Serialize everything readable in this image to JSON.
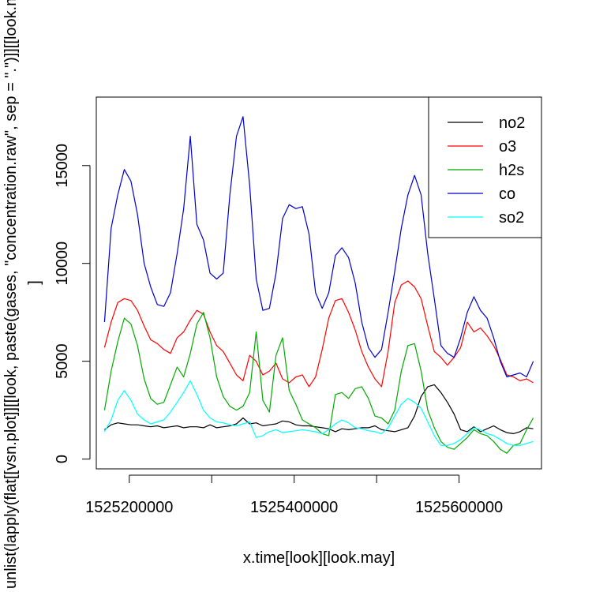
{
  "chart_data": {
    "type": "line",
    "xlabel": "x.time[look][look.may]",
    "ylabel_lines": [
      "unlist(lapply(flat[[vsn.plot]][[look, paste(gases, \"concentration.raw\", sep = \".\")]][[look.may",
      "]"
    ],
    "xlim": [
      1525160000,
      1525700000
    ],
    "ylim": [
      -500,
      18500
    ],
    "x_ticks": [
      1525200000,
      1525300000,
      1525400000,
      1525500000,
      1525600000
    ],
    "x_tick_labels": [
      "1525200000",
      "",
      "1525400000",
      "",
      "1525600000"
    ],
    "y_ticks": [
      0,
      5000,
      10000,
      15000
    ],
    "y_tick_labels": [
      "0",
      "5000",
      "10000",
      "15000"
    ],
    "grid": false,
    "legend_position": "top-right",
    "x": [
      1525170000,
      1525178000,
      1525186000,
      1525194000,
      1525202000,
      1525210000,
      1525218000,
      1525226000,
      1525234000,
      1525242000,
      1525250000,
      1525258000,
      1525266000,
      1525274000,
      1525282000,
      1525290000,
      1525298000,
      1525306000,
      1525314000,
      1525322000,
      1525330000,
      1525338000,
      1525346000,
      1525354000,
      1525362000,
      1525370000,
      1525378000,
      1525386000,
      1525394000,
      1525402000,
      1525410000,
      1525418000,
      1525426000,
      1525434000,
      1525442000,
      1525450000,
      1525458000,
      1525466000,
      1525474000,
      1525482000,
      1525490000,
      1525498000,
      1525506000,
      1525514000,
      1525522000,
      1525530000,
      1525538000,
      1525546000,
      1525554000,
      1525562000,
      1525570000,
      1525578000,
      1525586000,
      1525594000,
      1525602000,
      1525610000,
      1525618000,
      1525626000,
      1525634000,
      1525642000,
      1525650000,
      1525658000,
      1525666000,
      1525674000,
      1525682000,
      1525690000
    ],
    "series": [
      {
        "name": "no2",
        "color": "#000000",
        "values": [
          1500,
          1750,
          1850,
          1800,
          1750,
          1750,
          1700,
          1650,
          1700,
          1600,
          1650,
          1700,
          1600,
          1650,
          1650,
          1600,
          1750,
          1600,
          1650,
          1700,
          1800,
          2100,
          1800,
          1850,
          1700,
          1750,
          1800,
          1950,
          1900,
          1750,
          1700,
          1700,
          1650,
          1600,
          1550,
          1400,
          1550,
          1500,
          1550,
          1600,
          1600,
          1700,
          1500,
          1450,
          1400,
          1500,
          1600,
          2200,
          3200,
          3700,
          3800,
          3400,
          2900,
          2300,
          1500,
          1400,
          1650,
          1400,
          1550,
          1700,
          1500,
          1350,
          1300,
          1400,
          1600,
          1550
        ]
      },
      {
        "name": "o3",
        "color": "#ff0000",
        "values": [
          5700,
          7000,
          8000,
          8200,
          8100,
          7600,
          6800,
          6100,
          5900,
          5600,
          5400,
          6200,
          6500,
          7100,
          7600,
          7400,
          6500,
          5800,
          5500,
          4900,
          4300,
          4000,
          5300,
          5000,
          4300,
          4500,
          4900,
          4100,
          3900,
          4200,
          4300,
          3700,
          4200,
          5600,
          7200,
          8100,
          8200,
          7500,
          6600,
          5500,
          4700,
          4100,
          3700,
          5500,
          8000,
          8900,
          9100,
          8800,
          8200,
          6800,
          5500,
          5200,
          4800,
          5200,
          5700,
          7000,
          6500,
          6700,
          6300,
          5800,
          5100,
          4300,
          4200,
          4000,
          4100,
          3900
        ]
      },
      {
        "name": "h2s",
        "color": "#00aa00",
        "values": [
          2500,
          4500,
          6000,
          7200,
          6900,
          5800,
          4100,
          3100,
          2800,
          2900,
          3800,
          4700,
          4200,
          5400,
          6900,
          7500,
          6200,
          4200,
          3200,
          2700,
          2500,
          2700,
          3400,
          6500,
          3000,
          2400,
          5300,
          6200,
          3500,
          2800,
          2000,
          1800,
          1600,
          1300,
          1200,
          3300,
          3400,
          3100,
          3600,
          3700,
          3100,
          2200,
          2100,
          1800,
          2500,
          4500,
          5800,
          5900,
          4500,
          2500,
          1600,
          900,
          600,
          500,
          800,
          1100,
          1500,
          1300,
          1200,
          900,
          500,
          300,
          700,
          800,
          1500,
          2100
        ]
      },
      {
        "name": "co",
        "color": "#0000cc",
        "values": [
          7000,
          11800,
          13500,
          14800,
          14200,
          12500,
          10000,
          8800,
          7900,
          7800,
          8500,
          10500,
          12800,
          16500,
          12000,
          11200,
          9500,
          9200,
          9500,
          13500,
          16500,
          17500,
          14000,
          9200,
          7600,
          7700,
          9500,
          12300,
          13000,
          12800,
          12900,
          11500,
          8500,
          7700,
          8500,
          10400,
          10800,
          10300,
          9000,
          7000,
          5700,
          5200,
          5600,
          7500,
          9600,
          11800,
          13500,
          14500,
          13500,
          10500,
          8200,
          5800,
          5400,
          5200,
          6200,
          7500,
          8300,
          7600,
          7200,
          6200,
          5000,
          4200,
          4300,
          4400,
          4200,
          5000
        ]
      },
      {
        "name": "so2",
        "color": "#00ffff",
        "values": [
          1400,
          2000,
          3000,
          3500,
          3000,
          2300,
          2000,
          1800,
          1900,
          2000,
          2400,
          2900,
          3400,
          4000,
          3300,
          2500,
          2100,
          1900,
          1850,
          1750,
          1700,
          1800,
          1900,
          1100,
          1200,
          1400,
          1500,
          1350,
          1400,
          1450,
          1500,
          1450,
          1400,
          1300,
          1500,
          1800,
          2000,
          1850,
          1600,
          1550,
          1450,
          1400,
          1300,
          1600,
          2200,
          2800,
          3100,
          2900,
          2600,
          1900,
          1200,
          700,
          700,
          800,
          1000,
          1300,
          1600,
          1500,
          1300,
          1200,
          1000,
          800,
          700,
          700,
          800,
          900
        ]
      }
    ]
  }
}
